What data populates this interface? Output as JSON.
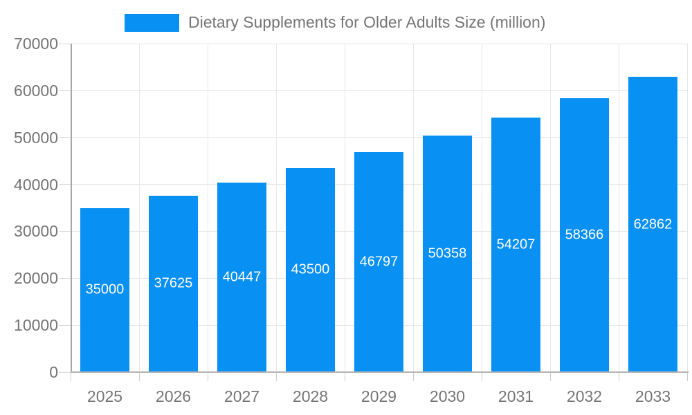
{
  "chart_data": {
    "type": "bar",
    "title": "Dietary Supplements for Older Adults Size (million)",
    "categories": [
      "2025",
      "2026",
      "2027",
      "2028",
      "2029",
      "2030",
      "2031",
      "2032",
      "2033"
    ],
    "values": [
      35000,
      37625,
      40447,
      43500,
      46797,
      50358,
      54207,
      58366,
      62862
    ],
    "value_labels": [
      "35000",
      "37625",
      "40447",
      "43500",
      "46797",
      "50358",
      "54207",
      "58366",
      "62862"
    ],
    "ylim": [
      0,
      70000
    ],
    "ytick_step": 10000,
    "ytick_labels": [
      "0",
      "10000",
      "20000",
      "30000",
      "40000",
      "50000",
      "60000",
      "70000"
    ],
    "legend": {
      "label": "Dietary Supplements for Older Adults Size (million)",
      "position": "top"
    },
    "grid": true,
    "colors": {
      "bar": "#0990f3",
      "value_text": "#ffffff",
      "axis_text": "#757575",
      "gridline": "#e6e6e6",
      "axis_line": "#b3b3b3"
    }
  }
}
